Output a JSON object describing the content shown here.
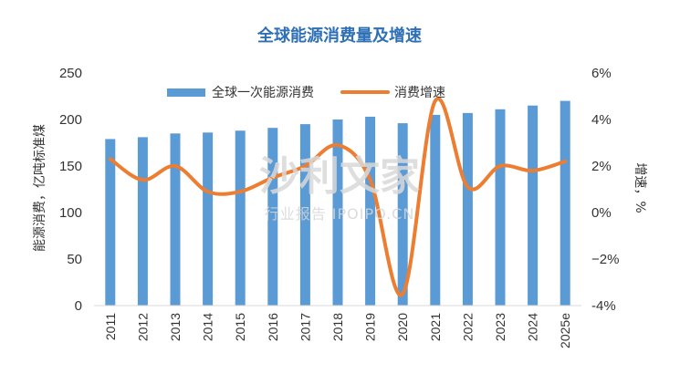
{
  "chart_data": {
    "type": "bar",
    "title": "全球能源消费量及增速",
    "ylabel_left": "能源消费，亿吨标准煤",
    "ylabel_right": "增速，%",
    "categories": [
      "2011",
      "2012",
      "2013",
      "2014",
      "2015",
      "2016",
      "2017",
      "2018",
      "2019",
      "2020",
      "2021",
      "2022",
      "2023",
      "2024",
      "2025e"
    ],
    "ylim_left": [
      0,
      250
    ],
    "yticks_left": [
      0,
      50,
      100,
      150,
      200,
      250
    ],
    "ylim_right": [
      -4,
      6
    ],
    "yticks_right": [
      -4,
      -2,
      0,
      2,
      4,
      6
    ],
    "ytick_labels_right": [
      "-4%",
      "−2%",
      "0%",
      "2%",
      "4%",
      "6%"
    ],
    "series": [
      {
        "name": "全球一次能源消费",
        "type": "bar",
        "axis": "left",
        "color": "#5b9bd5",
        "values": [
          179,
          181,
          185,
          186,
          188,
          191,
          195,
          200,
          203,
          196,
          205,
          207,
          211,
          215,
          220
        ]
      },
      {
        "name": "消费增速",
        "type": "line",
        "axis": "right",
        "color": "#ed7d31",
        "values": [
          2.3,
          1.4,
          2.0,
          0.9,
          0.9,
          1.5,
          2.0,
          2.9,
          1.4,
          -3.5,
          4.8,
          1.1,
          2.0,
          1.8,
          2.2
        ]
      }
    ],
    "legend_position": "top",
    "grid": false
  },
  "watermark": {
    "main": "沙利文家",
    "sub": "行业报告 IPOIPO.CN"
  }
}
